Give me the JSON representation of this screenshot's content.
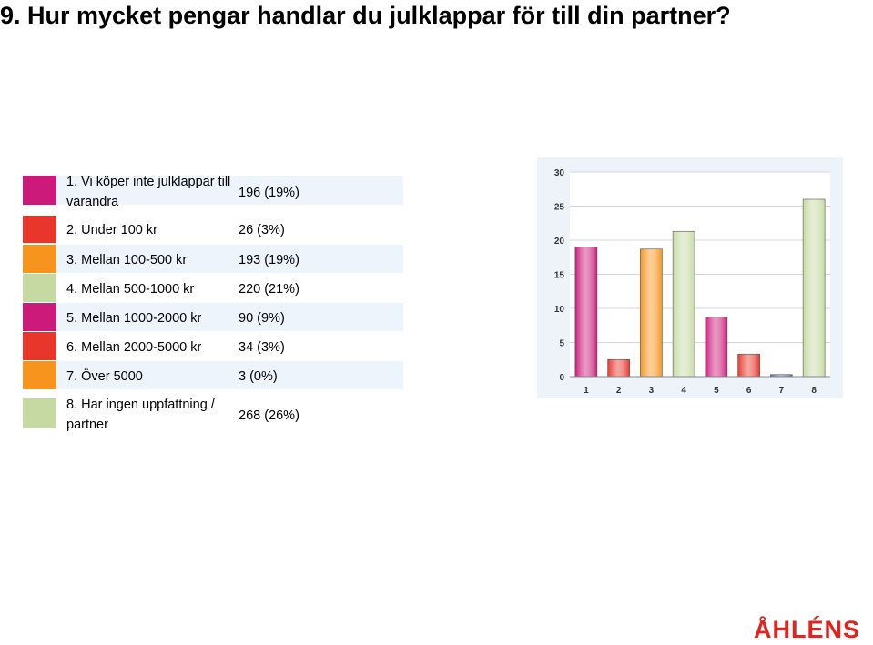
{
  "title": "9. Hur mycket pengar handlar du julklappar för till din partner?",
  "logo": "ÅHLÉNS",
  "rows": [
    {
      "label": "1. Vi köper inte julklappar till varandra",
      "value": "196 (19%)",
      "color": "#cc1a7a"
    },
    {
      "label": "2. Under 100 kr",
      "value": "26 (3%)",
      "color": "#e8362b"
    },
    {
      "label": "3. Mellan 100-500 kr",
      "value": "193 (19%)",
      "color": "#f7941d"
    },
    {
      "label": "4. Mellan 500-1000 kr",
      "value": "220 (21%)",
      "color": "#c6d9a2"
    },
    {
      "label": "5. Mellan 1000-2000 kr",
      "value": "90 (9%)",
      "color": "#cc1a7a"
    },
    {
      "label": "6. Mellan 2000-5000 kr",
      "value": "34 (3%)",
      "color": "#e8362b"
    },
    {
      "label": "7. Över 5000",
      "value": "3 (0%)",
      "color": "#f7941d"
    },
    {
      "label": "8. Har ingen uppfattning / partner",
      "value": "268 (26%)",
      "color": "#c6d9a2"
    }
  ],
  "chart_data": {
    "type": "bar",
    "categories": [
      "1",
      "2",
      "3",
      "4",
      "5",
      "6",
      "7",
      "8"
    ],
    "values": [
      19,
      2.5,
      18.7,
      21.3,
      8.7,
      3.3,
      0.3,
      26
    ],
    "yticks": [
      "0",
      "5",
      "10",
      "15",
      "20",
      "25",
      "30"
    ],
    "ylim": [
      0,
      30
    ],
    "grid": true,
    "colors": [
      "#cc1a7a",
      "#e8362b",
      "#f7941d",
      "#c6d9a2",
      "#cc1a7a",
      "#e8362b",
      "#4a6fa5",
      "#c6d9a2"
    ]
  }
}
